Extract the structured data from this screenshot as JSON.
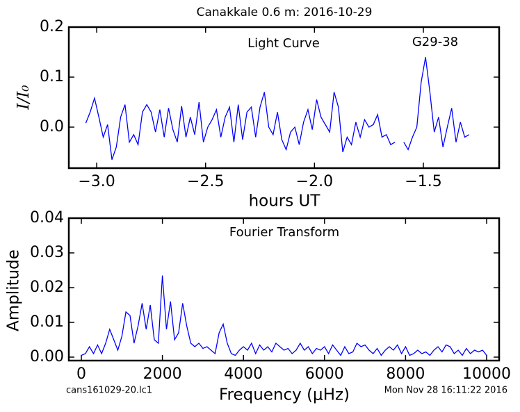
{
  "chart_data": [
    {
      "type": "line",
      "title": "Canakkale 0.6 m:  2016-10-29",
      "annotations": [
        "Light Curve",
        "G29-38"
      ],
      "xlabel": "hours UT",
      "ylabel": "I/I₀",
      "xlim": [
        -3.128,
        -1.152
      ],
      "ylim": [
        -0.082,
        0.2
      ],
      "xticks": [
        {
          "value": -3.0,
          "label": "−3.0"
        },
        {
          "value": -2.5,
          "label": "−2.5"
        },
        {
          "value": -2.0,
          "label": "−2.0"
        },
        {
          "value": -1.5,
          "label": "−1.5"
        }
      ],
      "yticks": [
        {
          "value": 0.0,
          "label": "0.0"
        },
        0.1,
        0.2
      ],
      "x": [
        -3.05,
        -3.03,
        -3.01,
        -2.99,
        -2.97,
        -2.95,
        -2.93,
        -2.91,
        -2.89,
        -2.87,
        -2.85,
        -2.83,
        -2.81,
        -2.79,
        -2.77,
        -2.75,
        -2.73,
        -2.71,
        -2.69,
        -2.67,
        -2.65,
        -2.63,
        -2.61,
        -2.59,
        -2.57,
        -2.55,
        -2.53,
        -2.51,
        -2.49,
        -2.47,
        -2.45,
        -2.43,
        -2.41,
        -2.39,
        -2.37,
        -2.35,
        -2.33,
        -2.31,
        -2.29,
        -2.27,
        -2.25,
        -2.23,
        -2.21,
        -2.19,
        -2.17,
        -2.15,
        -2.13,
        -2.11,
        -2.09,
        -2.07,
        -2.05,
        -2.03,
        -2.01,
        -1.99,
        -1.97,
        -1.95,
        -1.93,
        -1.91,
        -1.89,
        -1.87,
        -1.85,
        -1.83,
        -1.81,
        -1.79,
        -1.77,
        -1.75,
        -1.73,
        -1.71,
        -1.69,
        -1.67,
        -1.65,
        -1.63,
        -1.61,
        -1.59,
        -1.57,
        -1.55,
        -1.53,
        -1.51,
        -1.49,
        -1.47,
        -1.45,
        -1.43,
        -1.41,
        -1.39,
        -1.37,
        -1.35,
        -1.33,
        -1.31,
        -1.29
      ],
      "series": [
        {
          "name": "Light Curve",
          "color": "#0000ff",
          "values": [
            0.008,
            0.03,
            0.058,
            0.02,
            -0.02,
            0.005,
            -0.065,
            -0.04,
            0.02,
            0.045,
            -0.03,
            -0.015,
            -0.035,
            0.03,
            0.045,
            0.03,
            -0.01,
            0.035,
            -0.02,
            0.038,
            -0.005,
            -0.03,
            0.042,
            -0.02,
            0.02,
            -0.015,
            0.05,
            -0.03,
            0.0,
            0.015,
            0.035,
            -0.02,
            0.02,
            0.04,
            -0.03,
            0.045,
            -0.025,
            0.03,
            0.04,
            -0.02,
            0.04,
            0.07,
            0.0,
            -0.015,
            0.03,
            -0.025,
            -0.045,
            -0.01,
            0.0,
            -0.035,
            0.01,
            0.035,
            -0.005,
            0.055,
            0.02,
            0.005,
            -0.01,
            0.07,
            0.04,
            -0.05,
            -0.02,
            -0.035,
            0.01,
            -0.02,
            0.015,
            0.0,
            0.005,
            0.025,
            -0.02,
            -0.015,
            -0.035,
            -0.03,
            null,
            -0.03,
            -0.045,
            -0.02,
            0.0,
            0.09,
            0.14,
            0.07,
            -0.01,
            0.02,
            -0.04,
            0.0,
            0.038,
            -0.03,
            0.01,
            -0.02,
            -0.015
          ]
        }
      ]
    },
    {
      "type": "line",
      "annotations": [
        "Fourier Transform"
      ],
      "xlabel": "Frequency (μHz)",
      "ylabel": "Amplitude",
      "footer_left": "cans161029-20.lc1",
      "footer_right": "Mon Nov 28 16:11:22 2016",
      "xlim": [
        -309,
        10309
      ],
      "ylim": [
        -0.001,
        0.04
      ],
      "xticks": [
        0,
        2000,
        4000,
        6000,
        8000,
        10000
      ],
      "yticks": [
        {
          "value": 0.0,
          "label": "0.00"
        },
        0.01,
        0.02,
        0.03,
        0.04
      ],
      "x": [
        0,
        100,
        200,
        300,
        400,
        500,
        600,
        700,
        800,
        900,
        1000,
        1100,
        1200,
        1300,
        1400,
        1500,
        1600,
        1700,
        1800,
        1900,
        2000,
        2100,
        2200,
        2300,
        2400,
        2500,
        2600,
        2700,
        2800,
        2900,
        3000,
        3100,
        3200,
        3300,
        3400,
        3500,
        3600,
        3700,
        3800,
        3900,
        4000,
        4100,
        4200,
        4300,
        4400,
        4500,
        4600,
        4700,
        4800,
        4900,
        5000,
        5100,
        5200,
        5300,
        5400,
        5500,
        5600,
        5700,
        5800,
        5900,
        6000,
        6100,
        6200,
        6300,
        6400,
        6500,
        6600,
        6700,
        6800,
        6900,
        7000,
        7100,
        7200,
        7300,
        7400,
        7500,
        7600,
        7700,
        7800,
        7900,
        8000,
        8100,
        8200,
        8300,
        8400,
        8500,
        8600,
        8700,
        8800,
        8900,
        9000,
        9100,
        9200,
        9300,
        9400,
        9500,
        9600,
        9700,
        9800,
        9900,
        10000
      ],
      "series": [
        {
          "name": "Fourier Transform",
          "color": "#0000ff",
          "values": [
            0.0005,
            0.001,
            0.003,
            0.001,
            0.0035,
            0.001,
            0.004,
            0.008,
            0.005,
            0.002,
            0.006,
            0.013,
            0.012,
            0.004,
            0.009,
            0.0155,
            0.008,
            0.015,
            0.005,
            0.004,
            0.0235,
            0.008,
            0.016,
            0.005,
            0.007,
            0.0155,
            0.009,
            0.004,
            0.003,
            0.004,
            0.0025,
            0.003,
            0.002,
            0.001,
            0.007,
            0.0095,
            0.004,
            0.001,
            0.0005,
            0.002,
            0.003,
            0.002,
            0.004,
            0.001,
            0.0035,
            0.002,
            0.003,
            0.0015,
            0.004,
            0.003,
            0.002,
            0.0025,
            0.001,
            0.002,
            0.004,
            0.002,
            0.003,
            0.001,
            0.0025,
            0.002,
            0.003,
            0.001,
            0.0035,
            0.002,
            0.0005,
            0.003,
            0.001,
            0.0015,
            0.004,
            0.003,
            0.0035,
            0.002,
            0.001,
            0.0025,
            0.0005,
            0.002,
            0.003,
            0.002,
            0.0035,
            0.001,
            0.003,
            0.0005,
            0.001,
            0.002,
            0.001,
            0.0015,
            0.0005,
            0.002,
            0.003,
            0.0015,
            0.0035,
            0.003,
            0.001,
            0.002,
            0.0005,
            0.0025,
            0.001,
            0.002,
            0.0015,
            0.002,
            0.0005
          ]
        }
      ]
    }
  ]
}
